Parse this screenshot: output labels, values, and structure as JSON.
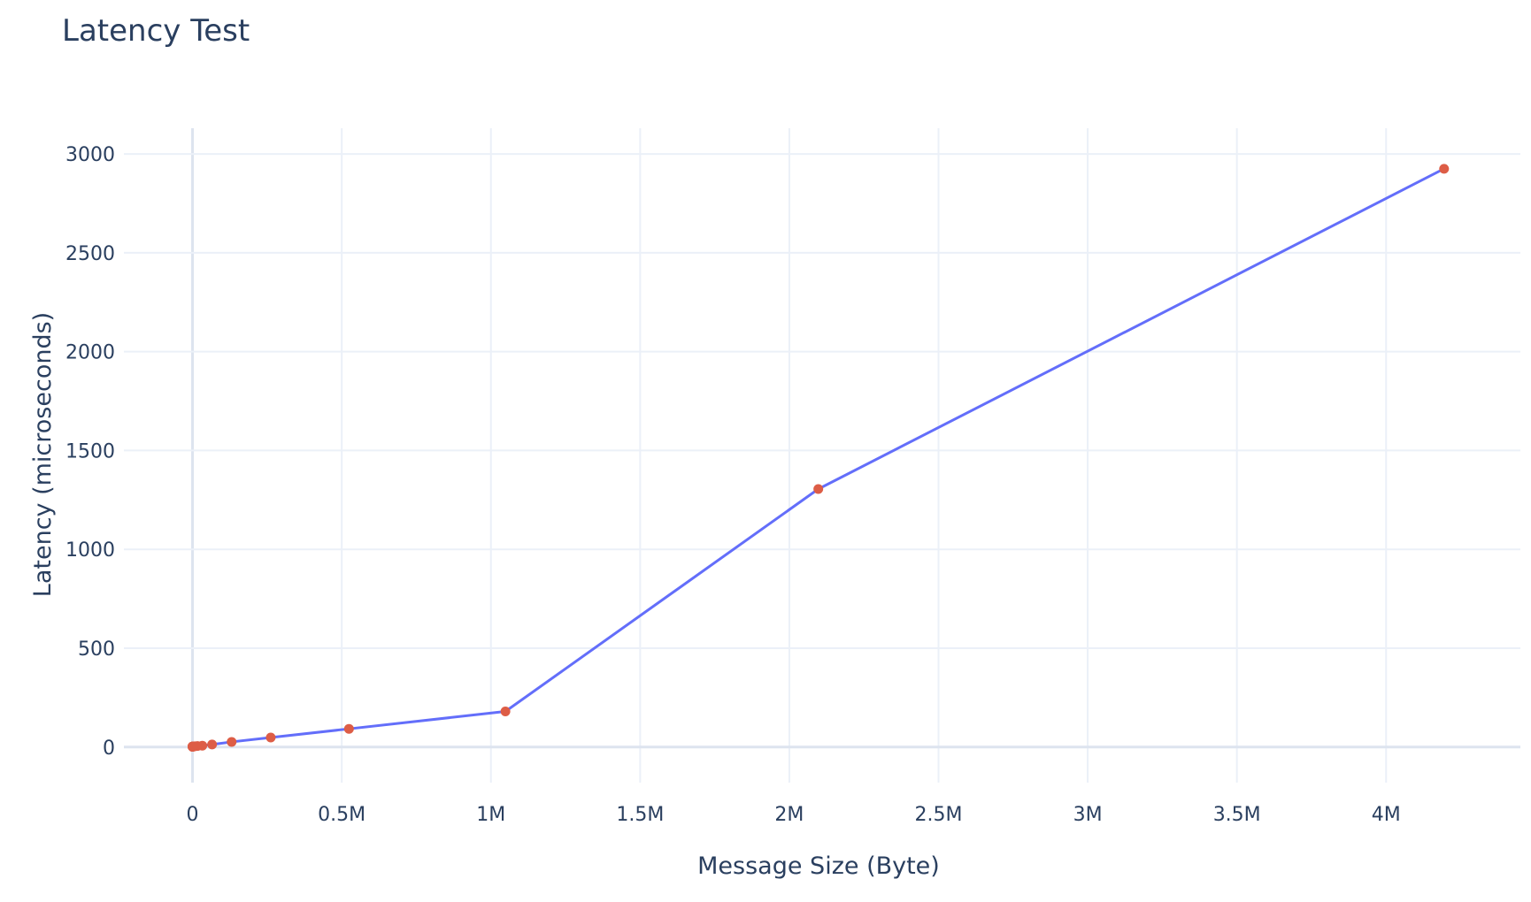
{
  "chart_data": {
    "type": "line",
    "title": "Latency Test",
    "xlabel": "Message Size (Byte)",
    "ylabel": "Latency (microseconds)",
    "x": [
      1,
      2,
      4,
      8,
      16,
      32,
      64,
      128,
      256,
      512,
      1024,
      2048,
      4096,
      8192,
      16384,
      32768,
      65536,
      131072,
      262144,
      524288,
      1048576,
      2097152,
      4194304
    ],
    "series": [
      {
        "values": [
          2,
          2,
          2,
          2,
          2,
          2,
          2,
          2,
          2,
          2,
          2.2,
          2.5,
          3,
          4,
          5,
          7,
          13,
          26,
          48,
          92,
          180,
          1305,
          2925
        ]
      }
    ],
    "xlim": [
      -230000,
      4450000
    ],
    "ylim": [
      -180,
      3130
    ],
    "xticks": [
      0,
      500000,
      1000000,
      1500000,
      2000000,
      2500000,
      3000000,
      3500000,
      4000000
    ],
    "xtick_labels": [
      "0",
      "0.5M",
      "1M",
      "1.5M",
      "2M",
      "2.5M",
      "3M",
      "3.5M",
      "4M"
    ],
    "yticks": [
      0,
      500,
      1000,
      1500,
      2000,
      2500,
      3000
    ],
    "ytick_labels": [
      "0",
      "500",
      "1000",
      "1500",
      "2000",
      "2500",
      "3000"
    ],
    "grid": true,
    "legend": "none",
    "colors": {
      "line": "#636efa",
      "marker": "#dd5d46",
      "grid": "#ebf0f8",
      "zeroline": "#dde4ef",
      "text": "#2a3f5f",
      "background": "#ffffff"
    }
  }
}
